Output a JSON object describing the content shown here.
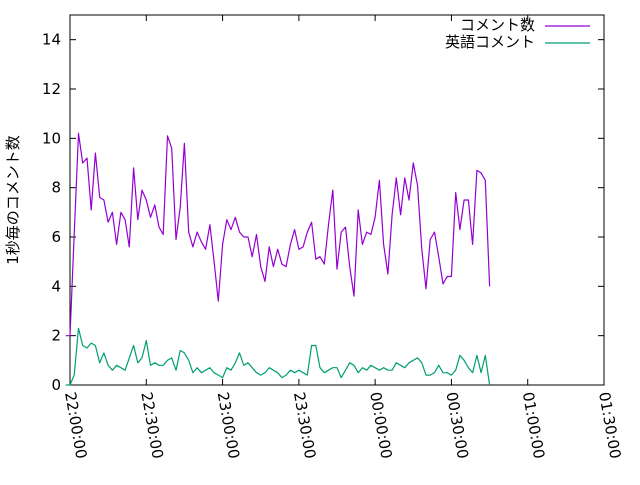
{
  "chart_data": {
    "type": "line",
    "title": "",
    "xlabel": "",
    "ylabel": "1秒毎のコメント数",
    "ylim": [
      0,
      15
    ],
    "yticks": [
      0,
      2,
      4,
      6,
      8,
      10,
      12,
      14
    ],
    "xlim": [
      "22:00:00",
      "01:30:00"
    ],
    "xtick_labels": [
      "22:00:00",
      "22:30:00",
      "23:00:00",
      "23:30:00",
      "00:00:00",
      "00:30:00",
      "01:00:00",
      "01:30:00"
    ],
    "grid": false,
    "legend_position": "top-right",
    "x_step": "0:01:40",
    "x_start": "21:58:20",
    "series": [
      {
        "name": "コメント数",
        "color": "#9400d3",
        "values": [
          2.0,
          2.0,
          6.1,
          10.2,
          9.0,
          9.2,
          7.1,
          9.4,
          7.6,
          7.5,
          6.6,
          7.0,
          5.7,
          7.0,
          6.7,
          5.6,
          8.8,
          6.7,
          7.9,
          7.5,
          6.8,
          7.3,
          6.4,
          6.1,
          10.1,
          9.6,
          5.9,
          7.2,
          9.8,
          6.2,
          5.6,
          6.2,
          5.8,
          5.5,
          6.5,
          5.0,
          3.4,
          5.7,
          6.7,
          6.3,
          6.8,
          6.2,
          6.0,
          6.0,
          5.2,
          6.1,
          4.8,
          4.2,
          5.6,
          4.8,
          5.5,
          4.9,
          4.8,
          5.7,
          6.3,
          5.5,
          5.6,
          6.2,
          6.6,
          5.1,
          5.2,
          4.9,
          6.5,
          7.9,
          4.7,
          6.2,
          6.4,
          4.8,
          3.6,
          7.1,
          5.7,
          6.2,
          6.1,
          6.8,
          8.3,
          5.7,
          4.5,
          6.9,
          8.4,
          6.9,
          8.4,
          7.5,
          9.0,
          8.1,
          5.5,
          3.9,
          5.9,
          6.2,
          5.2,
          4.1,
          4.4,
          4.4,
          7.8,
          6.3,
          7.5,
          7.5,
          5.7,
          8.7,
          8.6,
          8.3,
          4.0
        ]
      },
      {
        "name": "英語コメント",
        "color": "#009e73",
        "values": [
          0.0,
          0.0,
          0.4,
          2.3,
          1.6,
          1.5,
          1.7,
          1.6,
          0.9,
          1.3,
          0.8,
          0.6,
          0.8,
          0.7,
          0.6,
          1.1,
          1.6,
          0.9,
          1.1,
          1.8,
          0.8,
          0.9,
          0.8,
          0.8,
          1.0,
          1.1,
          0.6,
          1.4,
          1.3,
          1.0,
          0.5,
          0.7,
          0.5,
          0.6,
          0.7,
          0.5,
          0.4,
          0.3,
          0.7,
          0.6,
          0.9,
          1.3,
          0.8,
          0.9,
          0.7,
          0.5,
          0.4,
          0.5,
          0.7,
          0.6,
          0.5,
          0.3,
          0.4,
          0.6,
          0.5,
          0.6,
          0.5,
          0.4,
          1.6,
          1.6,
          0.7,
          0.5,
          0.6,
          0.7,
          0.7,
          0.3,
          0.6,
          0.9,
          0.8,
          0.5,
          0.7,
          0.6,
          0.8,
          0.7,
          0.6,
          0.7,
          0.6,
          0.6,
          0.9,
          0.8,
          0.7,
          0.9,
          1.0,
          1.1,
          0.9,
          0.4,
          0.4,
          0.5,
          0.8,
          0.5,
          0.5,
          0.4,
          0.6,
          1.2,
          1.0,
          0.7,
          0.5,
          1.2,
          0.5,
          1.2,
          0.0
        ]
      }
    ]
  }
}
